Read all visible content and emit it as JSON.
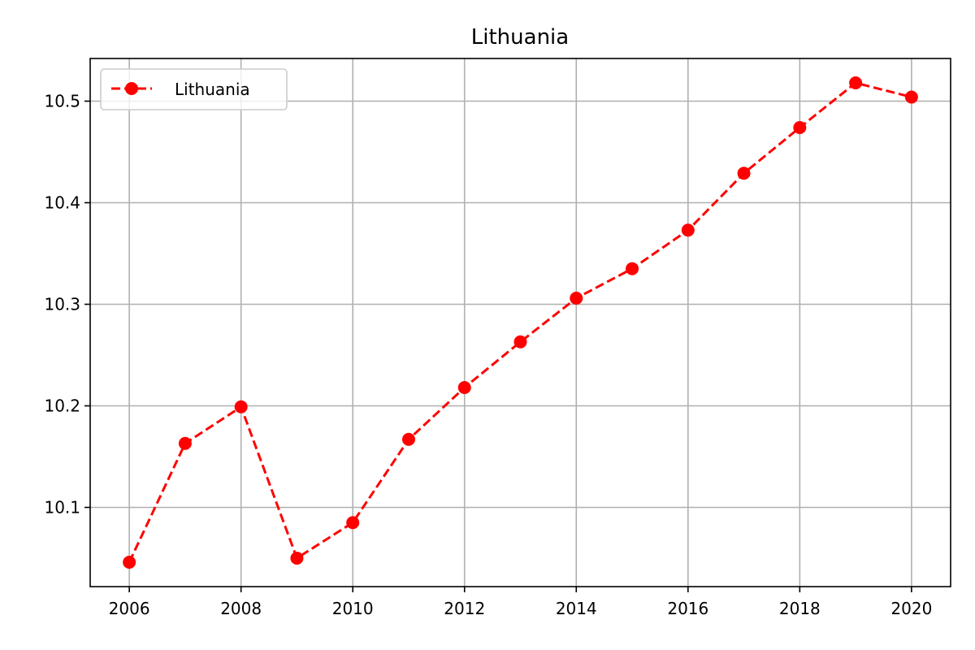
{
  "chart_data": {
    "type": "line",
    "title": "Lithuania",
    "xlabel": "",
    "ylabel": "",
    "x": [
      2006,
      2007,
      2008,
      2009,
      2010,
      2011,
      2012,
      2013,
      2014,
      2015,
      2016,
      2017,
      2018,
      2019,
      2020
    ],
    "series": [
      {
        "name": "Lithuania",
        "color": "#ff0000",
        "line_style": "dashed",
        "marker": "circle",
        "values": [
          10.046,
          10.163,
          10.199,
          10.05,
          10.085,
          10.167,
          10.218,
          10.263,
          10.306,
          10.335,
          10.373,
          10.429,
          10.474,
          10.518,
          10.504
        ]
      }
    ],
    "xlim": [
      2005.3,
      2020.7
    ],
    "ylim": [
      10.022,
      10.542
    ],
    "xticks": [
      2006,
      2008,
      2010,
      2012,
      2014,
      2016,
      2018,
      2020
    ],
    "yticks": [
      10.1,
      10.2,
      10.3,
      10.4,
      10.5
    ],
    "ytick_labels": [
      "10.1",
      "10.2",
      "10.3",
      "10.4",
      "10.5"
    ],
    "grid": true,
    "legend_position": "top-left"
  }
}
